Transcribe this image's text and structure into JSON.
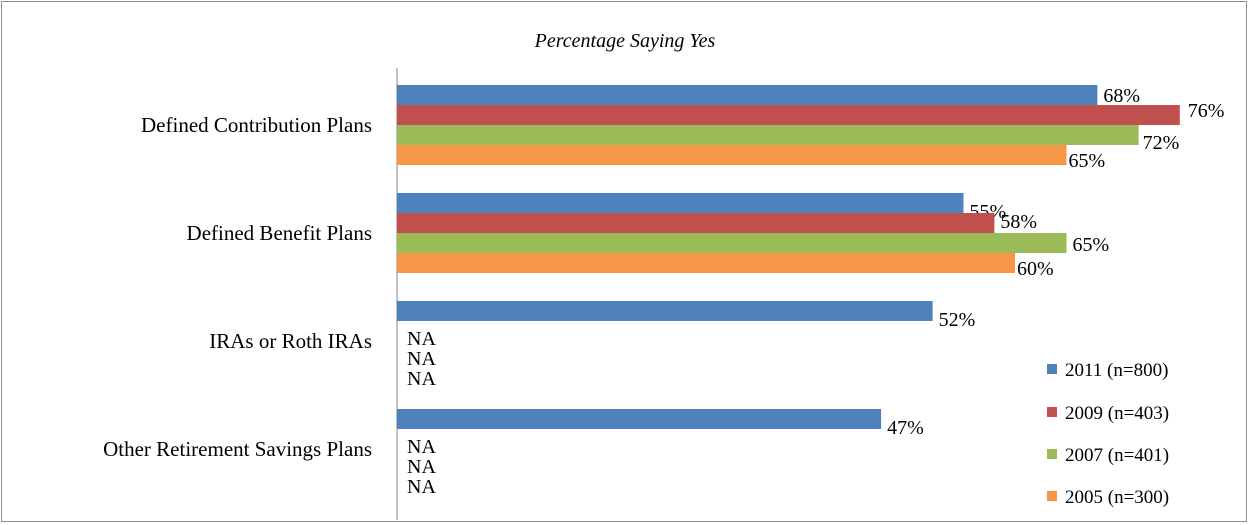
{
  "chart_data": {
    "type": "bar",
    "orientation": "horizontal",
    "title": "Percentage Saying Yes",
    "categories": [
      "Defined Contribution Plans",
      "Defined Benefit Plans",
      "IRAs or Roth IRAs",
      "Other Retirement Savings Plans"
    ],
    "series": [
      {
        "name": "2011 (n=800)",
        "values": [
          68,
          55,
          52,
          47
        ],
        "labels": [
          "68%",
          "55%",
          "52%",
          "47%"
        ]
      },
      {
        "name": "2009 (n=403)",
        "values": [
          76,
          58,
          null,
          null
        ],
        "labels": [
          "76%",
          "58%",
          "NA",
          "NA"
        ]
      },
      {
        "name": "2007 (n=401)",
        "values": [
          72,
          65,
          null,
          null
        ],
        "labels": [
          "72%",
          "65%",
          "NA",
          "NA"
        ]
      },
      {
        "name": "2005 (n=300)",
        "values": [
          65,
          60,
          null,
          null
        ],
        "labels": [
          "65%",
          "60%",
          "NA",
          "NA"
        ]
      }
    ],
    "xlim": [
      0,
      100
    ],
    "grid": false,
    "legend_position": "bottom-right",
    "colors": [
      "#4f81bd",
      "#c0504d",
      "#9bbb59",
      "#f79646"
    ]
  }
}
